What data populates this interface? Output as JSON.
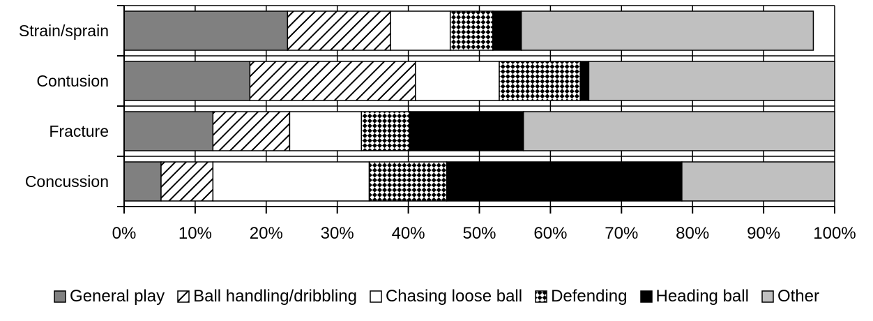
{
  "chart_data": {
    "type": "bar",
    "orientation": "horizontal",
    "stacked": true,
    "categories": [
      "Strain/sprain",
      "Contusion",
      "Fracture",
      "Concussion"
    ],
    "series": [
      {
        "name": "General play",
        "values": [
          23,
          17.7,
          12.5,
          5.2
        ],
        "color": "#808080",
        "pattern": "solid"
      },
      {
        "name": "Ball handling/dribbling",
        "values": [
          14.5,
          23.3,
          10.8,
          7.3
        ],
        "color": "#ffffff",
        "pattern": "diagonal-hatch"
      },
      {
        "name": "Chasing loose ball",
        "values": [
          8.4,
          11.8,
          10.1,
          22
        ],
        "color": "#ffffff",
        "pattern": "solid"
      },
      {
        "name": "Defending",
        "values": [
          6,
          11.4,
          6.8,
          10.9
        ],
        "color": "#ffffff",
        "pattern": "diamond-checker"
      },
      {
        "name": "Heading ball",
        "values": [
          4,
          1.2,
          16,
          33.1
        ],
        "color": "#000000",
        "pattern": "solid"
      },
      {
        "name": "Other",
        "values": [
          41.1,
          34.6,
          43.8,
          21.5
        ],
        "color": "#c0c0c0",
        "pattern": "solid"
      }
    ],
    "x_ticks": [
      "0%",
      "10%",
      "20%",
      "30%",
      "40%",
      "50%",
      "60%",
      "70%",
      "80%",
      "90%",
      "100%"
    ],
    "xlim": [
      0,
      100
    ],
    "title": "",
    "xlabel": "",
    "ylabel": "",
    "grid": true,
    "legend_position": "bottom"
  }
}
